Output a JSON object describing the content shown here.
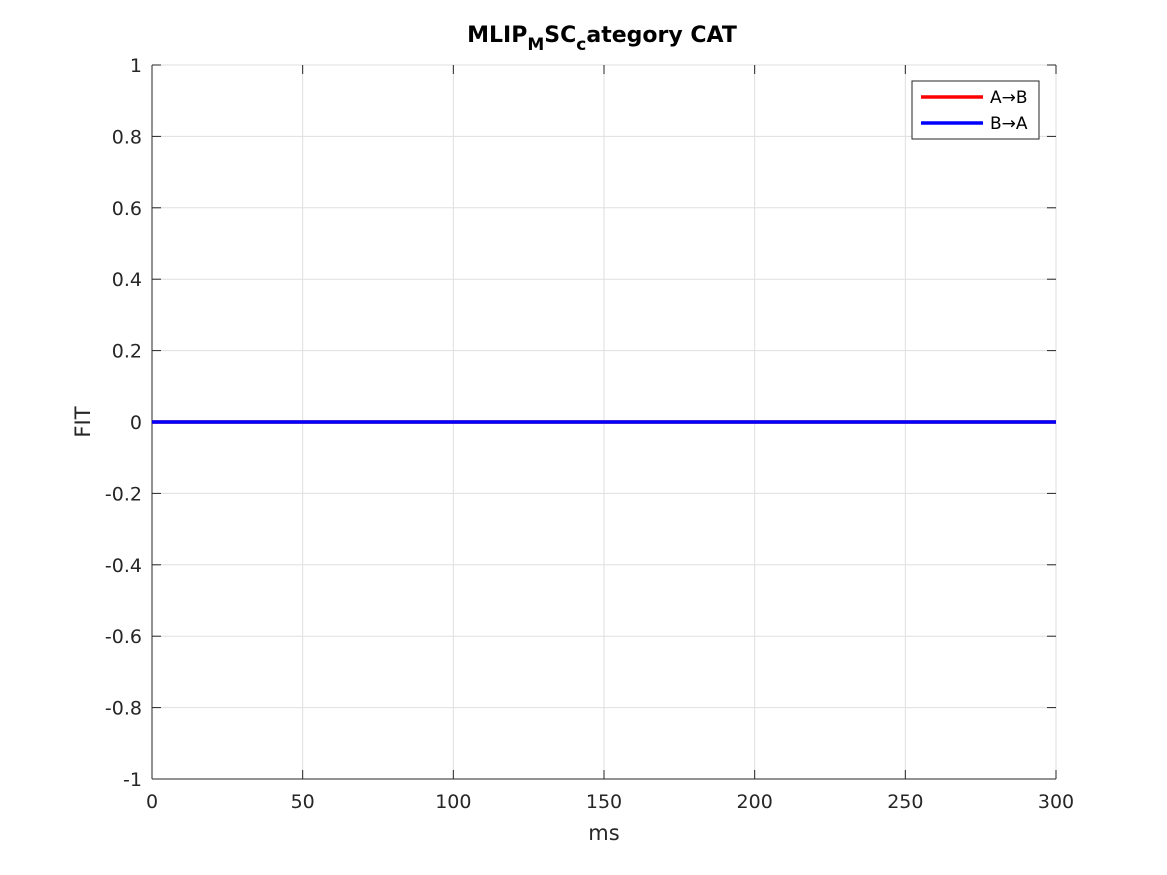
{
  "chart_data": {
    "type": "line",
    "title": {
      "part1": "MLIP",
      "sub1": "M",
      "part2": "SC",
      "sub2": "c",
      "part3": "ategory CAT"
    },
    "xlabel": "ms",
    "ylabel": "FIT",
    "xlim": [
      0,
      300
    ],
    "ylim": [
      -1,
      1
    ],
    "xticks": [
      0,
      50,
      100,
      150,
      200,
      250,
      300
    ],
    "yticks": [
      -1,
      -0.8,
      -0.6,
      -0.4,
      -0.2,
      0,
      0.2,
      0.4,
      0.6,
      0.8,
      1
    ],
    "xtick_labels": [
      "0",
      "50",
      "100",
      "150",
      "200",
      "250",
      "300"
    ],
    "ytick_labels": [
      "-1",
      "-0.8",
      "-0.6",
      "-0.4",
      "-0.2",
      "0",
      "0.2",
      "0.4",
      "0.6",
      "0.8",
      "1"
    ],
    "grid": true,
    "legend_position": "top-right",
    "series": [
      {
        "name": "A→B",
        "color": "#ff0000",
        "x": [
          0,
          300
        ],
        "y": [
          0,
          0
        ]
      },
      {
        "name": "B→A",
        "color": "#0000ff",
        "x": [
          0,
          300
        ],
        "y": [
          0,
          0
        ]
      }
    ]
  }
}
